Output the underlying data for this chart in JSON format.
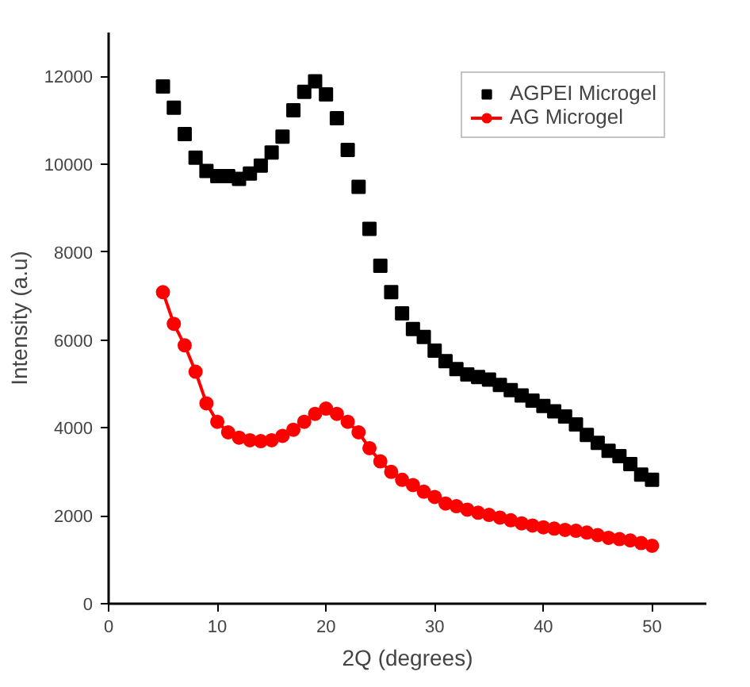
{
  "chart_data": {
    "type": "scatter",
    "xlabel": "2Q (degrees)",
    "ylabel": "Intensity (a.u)",
    "x": [
      5,
      6,
      7,
      8,
      9,
      10,
      11,
      12,
      13,
      14,
      15,
      16,
      17,
      18,
      19,
      20,
      21,
      22,
      23,
      24,
      25,
      26,
      27,
      28,
      29,
      30,
      31,
      32,
      33,
      34,
      35,
      36,
      37,
      38,
      39,
      40,
      41,
      42,
      43,
      44,
      45,
      46,
      47,
      48,
      49,
      50
    ],
    "series": [
      {
        "name": "AGPEI Microgel",
        "color": "#000000",
        "marker": "square",
        "values": [
          11770,
          11290,
          10690,
          10150,
          9850,
          9730,
          9730,
          9670,
          9790,
          9970,
          10270,
          10630,
          11230,
          11650,
          11890,
          11590,
          11050,
          10330,
          9490,
          8530,
          7690,
          7090,
          6610,
          6250,
          6070,
          5760,
          5520,
          5340,
          5220,
          5160,
          5100,
          4980,
          4860,
          4740,
          4620,
          4500,
          4380,
          4260,
          4080,
          3840,
          3660,
          3480,
          3360,
          3180,
          2940,
          2820
        ]
      },
      {
        "name": "AG Microgel",
        "color": "#ff0000",
        "type": "line",
        "marker": "circle",
        "values": [
          7090,
          6370,
          5880,
          5280,
          4560,
          4140,
          3900,
          3780,
          3720,
          3700,
          3720,
          3820,
          3960,
          4140,
          4320,
          4440,
          4320,
          4140,
          3900,
          3540,
          3240,
          3000,
          2820,
          2700,
          2550,
          2430,
          2280,
          2220,
          2140,
          2070,
          2020,
          1960,
          1900,
          1830,
          1780,
          1740,
          1710,
          1680,
          1660,
          1620,
          1560,
          1500,
          1470,
          1440,
          1380,
          1320
        ]
      }
    ],
    "xlim": [
      0,
      55
    ],
    "xticks": [
      0,
      10,
      20,
      30,
      40,
      50
    ],
    "ylim": [
      0,
      13000
    ],
    "yticks": [
      0,
      2000,
      4000,
      6000,
      8000,
      10000,
      12000
    ],
    "grid": false,
    "legend": "top right"
  }
}
